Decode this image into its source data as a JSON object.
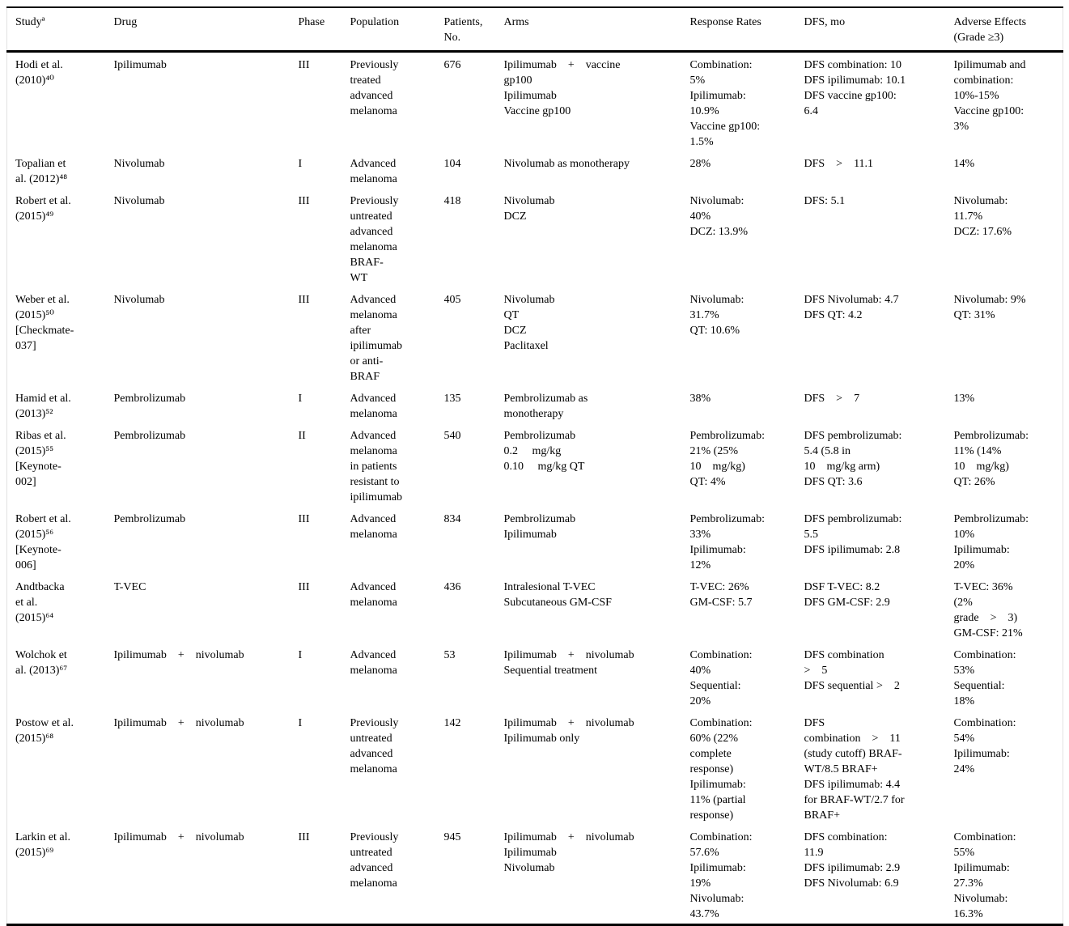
{
  "table": {
    "columns": [
      {
        "key": "study",
        "label": "Studyª"
      },
      {
        "key": "drug",
        "label": "Drug"
      },
      {
        "key": "phase",
        "label": "Phase"
      },
      {
        "key": "population",
        "label": "Population"
      },
      {
        "key": "patients",
        "label": "Patients,\nNo."
      },
      {
        "key": "arms",
        "label": "Arms"
      },
      {
        "key": "response",
        "label": "Response Rates"
      },
      {
        "key": "dfs",
        "label": "DFS, mo"
      },
      {
        "key": "adverse",
        "label": "Adverse Effects\n(Grade ≥3)"
      }
    ],
    "rows": [
      {
        "study": "Hodi et al.\n(2010)⁴⁰",
        "drug": "Ipilimumab",
        "phase": "III",
        "population": "Previously\ntreated\nadvanced\nmelanoma",
        "patients": "676",
        "arms": "Ipilimumab    +    vaccine\ngp100\nIpilimumab\nVaccine gp100",
        "response": "Combination:\n5%\nIpilimumab:\n10.9%\nVaccine gp100:\n1.5%",
        "dfs": "DFS combination: 10\nDFS ipilimumab: 10.1\nDFS vaccine gp100:\n6.4",
        "adverse": "Ipilimumab and\ncombination:\n10%-15%\nVaccine gp100:\n3%"
      },
      {
        "study": "Topalian et\nal. (2012)⁴⁸",
        "drug": "Nivolumab",
        "phase": "I",
        "population": "Advanced\nmelanoma",
        "patients": "104",
        "arms": "Nivolumab as monotherapy",
        "response": "28%",
        "dfs": "DFS    >    11.1",
        "adverse": "14%"
      },
      {
        "study": "Robert et al.\n(2015)⁴⁹",
        "drug": "Nivolumab",
        "phase": "III",
        "population": "Previously\nuntreated\nadvanced\nmelanoma\nBRAF-\nWT",
        "patients": "418",
        "arms": "Nivolumab\nDCZ",
        "response": "Nivolumab:\n40%\nDCZ: 13.9%",
        "dfs": "DFS: 5.1",
        "adverse": "Nivolumab:\n11.7%\nDCZ: 17.6%"
      },
      {
        "study": "Weber et al.\n(2015)⁵⁰\n[Checkmate-\n037]",
        "drug": "Nivolumab",
        "phase": "III",
        "population": "Advanced\nmelanoma\nafter\nipilimumab\nor anti-\nBRAF",
        "patients": "405",
        "arms": "Nivolumab\nQT\nDCZ\nPaclitaxel",
        "response": "Nivolumab:\n31.7%\nQT: 10.6%",
        "dfs": "DFS Nivolumab: 4.7\nDFS QT: 4.2",
        "adverse": "Nivolumab: 9%\nQT: 31%"
      },
      {
        "study": "Hamid et al.\n(2013)⁵²",
        "drug": "Pembrolizumab",
        "phase": "I",
        "population": "Advanced\nmelanoma",
        "patients": "135",
        "arms": "Pembrolizumab as\nmonotherapy",
        "response": "38%",
        "dfs": "DFS    >    7",
        "adverse": "13%"
      },
      {
        "study": "Ribas et al.\n(2015)⁵⁵\n[Keynote-\n002]",
        "drug": "Pembrolizumab",
        "phase": "II",
        "population": "Advanced\nmelanoma\nin patients\nresistant to\nipilimumab",
        "patients": "540",
        "arms": "Pembrolizumab\n0.2     mg/kg\n0.10     mg/kg QT",
        "response": "Pembrolizumab:\n21% (25%\n10    mg/kg)\nQT: 4%",
        "dfs": "DFS pembrolizumab:\n5.4 (5.8 in\n10    mg/kg arm)\nDFS QT: 3.6",
        "adverse": "Pembrolizumab:\n11% (14%\n10    mg/kg)\nQT: 26%"
      },
      {
        "study": "Robert et al.\n(2015)⁵⁶\n[Keynote-\n006]",
        "drug": "Pembrolizumab",
        "phase": "III",
        "population": "Advanced\nmelanoma",
        "patients": "834",
        "arms": "Pembrolizumab\nIpilimumab",
        "response": "Pembrolizumab:\n33%\nIpilimumab:\n12%",
        "dfs": "DFS pembrolizumab:\n5.5\nDFS ipilimumab: 2.8",
        "adverse": "Pembrolizumab:\n10%\nIpilimumab:\n20%"
      },
      {
        "study": "Andtbacka\net al.\n(2015)⁶⁴",
        "drug": "T-VEC",
        "phase": "III",
        "population": "Advanced\nmelanoma",
        "patients": "436",
        "arms": "Intralesional T-VEC\nSubcutaneous GM-CSF",
        "response": "T-VEC: 26%\nGM-CSF: 5.7",
        "dfs": "DSF T-VEC: 8.2\nDFS GM-CSF: 2.9",
        "adverse": "T-VEC: 36%\n(2%\ngrade    >    3)\nGM-CSF: 21%"
      },
      {
        "study": "Wolchok et\nal. (2013)⁶⁷",
        "drug": "Ipilimumab    +    nivolumab",
        "phase": "I",
        "population": "Advanced\nmelanoma",
        "patients": "53",
        "arms": "Ipilimumab    +    nivolumab\nSequential treatment",
        "response": "Combination:\n40%\nSequential:\n20%",
        "dfs": "DFS combination\n>    5\nDFS sequential >    2",
        "adverse": "Combination:\n53%\nSequential:\n18%"
      },
      {
        "study": "Postow et al.\n(2015)⁶⁸",
        "drug": "Ipilimumab    +    nivolumab",
        "phase": "I",
        "population": "Previously\nuntreated\nadvanced\nmelanoma",
        "patients": "142",
        "arms": "Ipilimumab    +    nivolumab\nIpilimumab only",
        "response": "Combination:\n60% (22%\ncomplete\nresponse)\nIpilimumab:\n11% (partial\nresponse)",
        "dfs": "DFS\ncombination    >    11\n(study cutoff) BRAF-\nWT/8.5 BRAF+\nDFS ipilimumab: 4.4\nfor BRAF-WT/2.7 for\nBRAF+",
        "adverse": "Combination:\n54%\nIpilimumab:\n24%"
      },
      {
        "study": "Larkin et al.\n(2015)⁶⁹",
        "drug": "Ipilimumab    +    nivolumab",
        "phase": "III",
        "population": "Previously\nuntreated\nadvanced\nmelanoma",
        "patients": "945",
        "arms": "Ipilimumab    +    nivolumab\nIpilimumab\nNivolumab",
        "response": "Combination:\n57.6%\nIpilimumab:\n19%\nNivolumab:\n43.7%",
        "dfs": "DFS combination:\n11.9\nDFS ipilimumab: 2.9\nDFS Nivolumab: 6.9",
        "adverse": "Combination:\n55%\nIpilimumab:\n27.3%\nNivolumab:\n16.3%"
      }
    ]
  }
}
